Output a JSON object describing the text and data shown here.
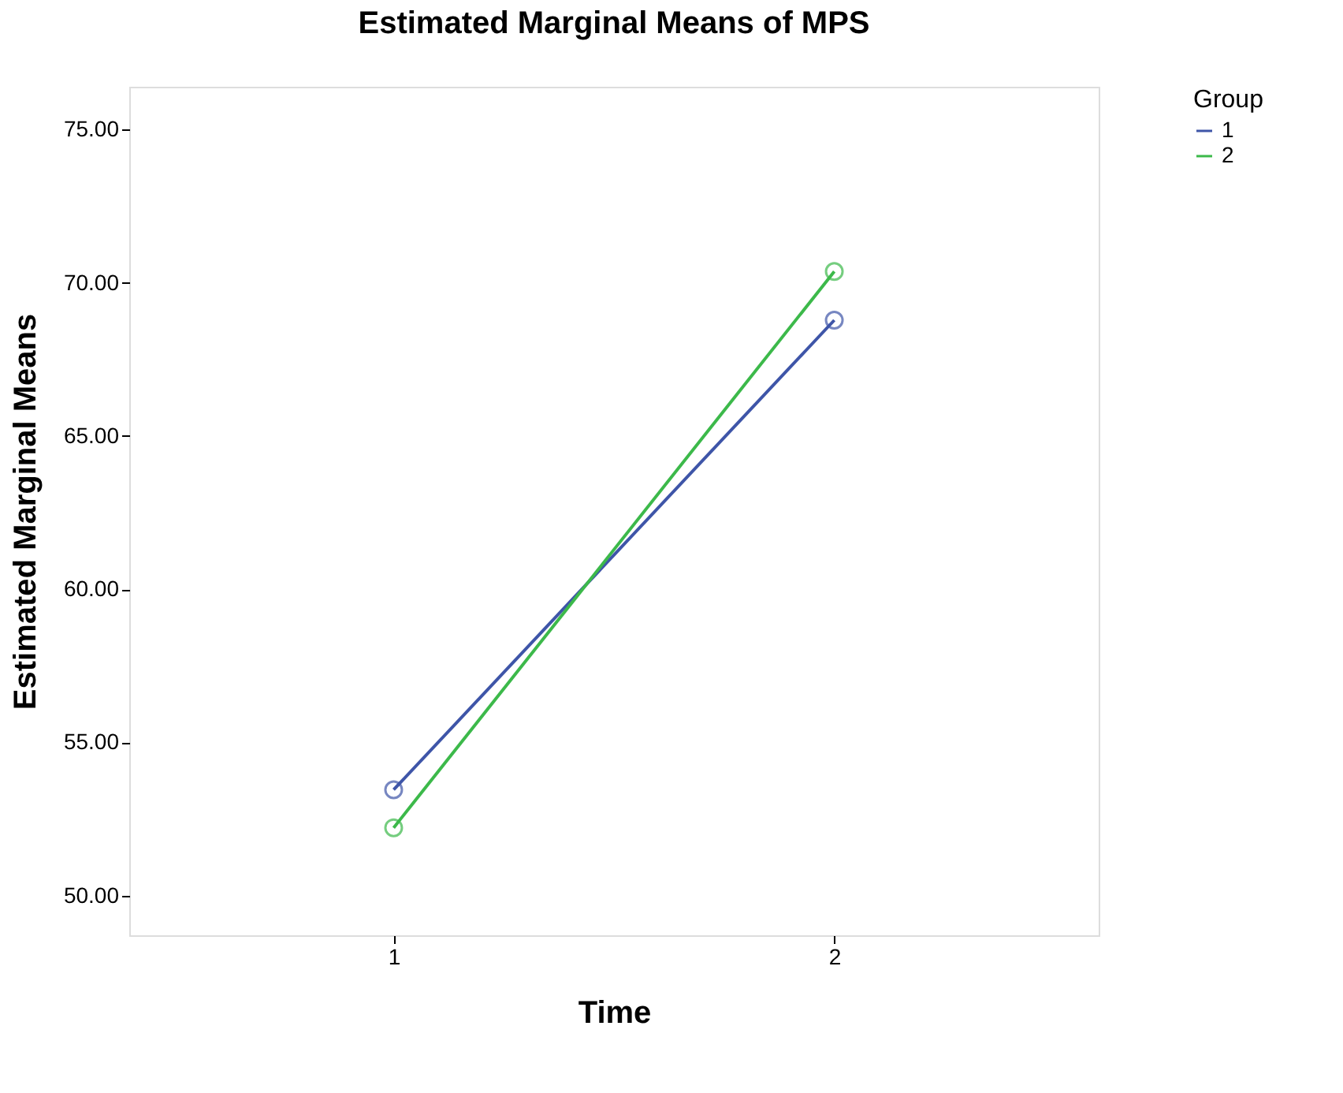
{
  "chart_data": {
    "type": "line",
    "title": "Estimated Marginal Means of MPS",
    "xlabel": "Time",
    "ylabel": "Estimated Marginal Means",
    "legend_title": "Group",
    "categories": [
      "1",
      "2"
    ],
    "series": [
      {
        "name": "1",
        "color": "#3e55a8",
        "values": [
          53.45,
          68.78
        ]
      },
      {
        "name": "2",
        "color": "#3cb94a",
        "values": [
          52.21,
          70.37
        ]
      }
    ],
    "ylim": [
      48.7,
      76.4
    ],
    "yticks": [
      {
        "value": 50,
        "label": "50.00"
      },
      {
        "value": 55,
        "label": "55.00"
      },
      {
        "value": 60,
        "label": "60.00"
      },
      {
        "value": 65,
        "label": "65.00"
      },
      {
        "value": 70,
        "label": "70.00"
      },
      {
        "value": 75,
        "label": "75.00"
      }
    ],
    "grid": false,
    "legend": "top right",
    "marker": "circle",
    "line_style": "solid"
  }
}
